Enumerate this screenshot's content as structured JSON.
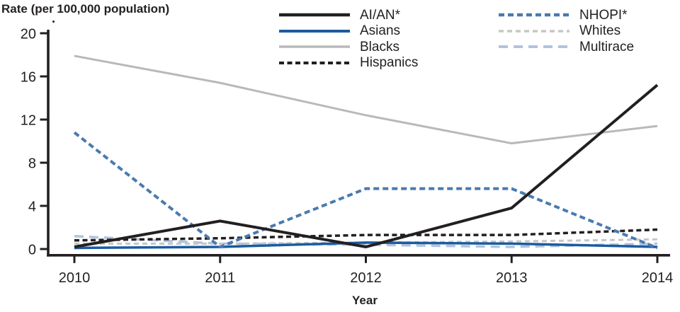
{
  "chart_data": {
    "type": "line",
    "title": "Rate (per 100,000 population)",
    "xlabel": "Year",
    "ylabel": "",
    "x": [
      2010,
      2011,
      2012,
      2013,
      2014
    ],
    "ylim": [
      0,
      20
    ],
    "yticks": [
      0,
      4,
      8,
      12,
      16,
      20
    ],
    "grid": false,
    "legend_position": "top, two columns inside plot area",
    "series": [
      {
        "name": "AI/AN*",
        "color": "#231f20",
        "dash": "solid",
        "values": [
          0.2,
          2.6,
          0.2,
          3.8,
          15.2
        ]
      },
      {
        "name": "Asians",
        "color": "#1b5ba0",
        "dash": "solid",
        "values": [
          0.1,
          0.2,
          0.6,
          0.5,
          0.2
        ]
      },
      {
        "name": "Blacks",
        "color": "#b9b9b9",
        "dash": "solid",
        "values": [
          17.9,
          15.4,
          12.4,
          9.8,
          11.4
        ]
      },
      {
        "name": "Hispanics",
        "color": "#231f20",
        "dash": "dashed",
        "values": [
          0.8,
          1.0,
          1.3,
          1.3,
          1.8
        ]
      },
      {
        "name": "NHOPI*",
        "color": "#4a7ab0",
        "dash": "dashed",
        "values": [
          10.8,
          0.2,
          5.6,
          5.6,
          0.1
        ]
      },
      {
        "name": "Whites",
        "color": "#c6c6c6",
        "dash": "dashed",
        "values": [
          0.5,
          0.5,
          0.6,
          0.7,
          0.9
        ]
      },
      {
        "name": "Multirace",
        "color": "#b0c3e0",
        "dash": "long-dash",
        "values": [
          1.2,
          0.5,
          0.4,
          0.2,
          0.5
        ]
      }
    ],
    "axis_color": "#231f20"
  }
}
